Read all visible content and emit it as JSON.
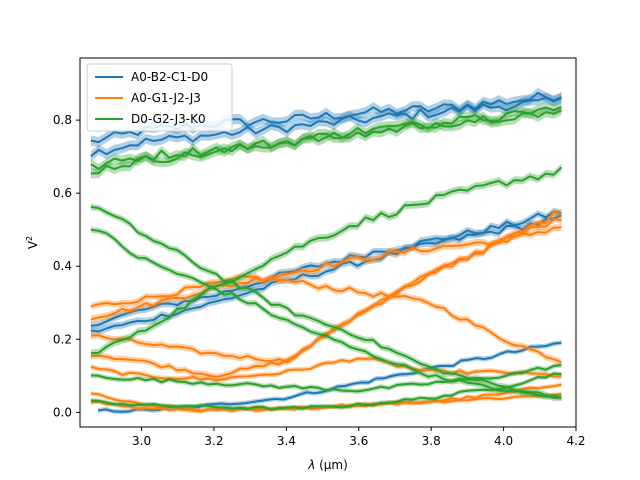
{
  "chart_data": {
    "type": "line",
    "xlabel_prefix": "λ",
    "xlabel_suffix": " (μm)",
    "ylabel_base": "V",
    "ylabel_sup": "2",
    "xlim": [
      2.83,
      4.2
    ],
    "ylim": [
      -0.04,
      0.97
    ],
    "xticks": [
      3.0,
      3.2,
      3.4,
      3.6,
      3.8,
      4.0,
      4.2
    ],
    "xtick_labels": [
      "3.0",
      "3.2",
      "3.4",
      "3.6",
      "3.8",
      "4.0",
      "4.2"
    ],
    "yticks": [
      0.0,
      0.2,
      0.4,
      0.6,
      0.8
    ],
    "ytick_labels": [
      "0.0",
      "0.2",
      "0.4",
      "0.6",
      "0.8"
    ],
    "grid": false,
    "legend_position": "top-left",
    "legend": [
      {
        "label": "A0-B2-C1-D0",
        "color": "#1f77b4"
      },
      {
        "label": "A0-G1-J2-J3",
        "color": "#ff7f0e"
      },
      {
        "label": "D0-G2-J3-K0",
        "color": "#2ca02c"
      }
    ],
    "series": [
      {
        "group": 0,
        "color": "#1f77b4",
        "band": true,
        "x": [
          2.86,
          3.0,
          3.2,
          3.4,
          3.6,
          3.8,
          4.0,
          4.16
        ],
        "y": [
          0.74,
          0.77,
          0.79,
          0.8,
          0.82,
          0.83,
          0.85,
          0.87
        ]
      },
      {
        "group": 0,
        "color": "#1f77b4",
        "band": true,
        "x": [
          2.86,
          3.0,
          3.2,
          3.4,
          3.6,
          3.8,
          4.0,
          4.16
        ],
        "y": [
          0.71,
          0.74,
          0.76,
          0.78,
          0.8,
          0.82,
          0.84,
          0.85
        ]
      },
      {
        "group": 0,
        "color": "#1f77b4",
        "band": true,
        "x": [
          2.86,
          3.0,
          3.2,
          3.4,
          3.6,
          3.8,
          4.0,
          4.16
        ],
        "y": [
          0.24,
          0.28,
          0.32,
          0.38,
          0.43,
          0.47,
          0.51,
          0.55
        ]
      },
      {
        "group": 0,
        "color": "#1f77b4",
        "band": true,
        "x": [
          2.86,
          3.0,
          3.2,
          3.4,
          3.6,
          3.8,
          4.0,
          4.16
        ],
        "y": [
          0.22,
          0.25,
          0.3,
          0.36,
          0.41,
          0.46,
          0.5,
          0.53
        ]
      },
      {
        "group": 0,
        "color": "#1f77b4",
        "band": true,
        "x": [
          2.88,
          3.0,
          3.2,
          3.4,
          3.6,
          3.8,
          4.0,
          4.16
        ],
        "y": [
          0.005,
          0.005,
          0.02,
          0.04,
          0.08,
          0.12,
          0.16,
          0.19
        ]
      },
      {
        "group": 1,
        "color": "#ff7f0e",
        "band": true,
        "x": [
          2.86,
          3.0,
          3.2,
          3.3,
          3.4,
          3.6,
          3.8,
          4.0,
          4.16
        ],
        "y": [
          0.29,
          0.31,
          0.35,
          0.37,
          0.36,
          0.33,
          0.3,
          0.2,
          0.14
        ]
      },
      {
        "group": 1,
        "color": "#ff7f0e",
        "band": true,
        "x": [
          2.86,
          3.0,
          3.2,
          3.3,
          3.4,
          3.6,
          3.8,
          4.0,
          4.16
        ],
        "y": [
          0.26,
          0.29,
          0.34,
          0.36,
          0.38,
          0.42,
          0.45,
          0.47,
          0.51
        ]
      },
      {
        "group": 1,
        "color": "#ff7f0e",
        "band": true,
        "x": [
          2.86,
          3.0,
          3.2,
          3.4,
          3.6,
          3.8,
          4.0,
          4.16
        ],
        "y": [
          0.21,
          0.19,
          0.16,
          0.14,
          0.27,
          0.38,
          0.47,
          0.55
        ]
      },
      {
        "group": 1,
        "color": "#ff7f0e",
        "band": true,
        "x": [
          2.86,
          3.0,
          3.2,
          3.4,
          3.6,
          3.8,
          4.0,
          4.16
        ],
        "y": [
          0.16,
          0.14,
          0.1,
          0.14,
          0.27,
          0.38,
          0.47,
          0.53
        ]
      },
      {
        "group": 1,
        "color": "#ff7f0e",
        "band": true,
        "x": [
          2.86,
          3.0,
          3.2,
          3.4,
          3.6,
          3.8,
          4.0,
          4.16
        ],
        "y": [
          0.12,
          0.1,
          0.09,
          0.11,
          0.15,
          0.11,
          0.11,
          0.1
        ]
      },
      {
        "group": 1,
        "color": "#ff7f0e",
        "band": true,
        "x": [
          2.86,
          3.0,
          3.2,
          3.4,
          3.6,
          3.8,
          4.0,
          4.16
        ],
        "y": [
          0.05,
          0.02,
          0.005,
          0.01,
          0.02,
          0.03,
          0.05,
          0.08
        ]
      },
      {
        "group": 1,
        "color": "#ff7f0e",
        "band": true,
        "x": [
          2.86,
          3.0,
          3.2,
          3.4,
          3.6,
          3.8,
          4.0,
          4.16
        ],
        "y": [
          0.03,
          0.01,
          0.005,
          0.01,
          0.02,
          0.03,
          0.04,
          0.05
        ]
      },
      {
        "group": 2,
        "color": "#2ca02c",
        "band": true,
        "x": [
          2.86,
          3.0,
          3.2,
          3.4,
          3.6,
          3.8,
          4.0,
          4.16
        ],
        "y": [
          0.67,
          0.7,
          0.72,
          0.74,
          0.77,
          0.79,
          0.81,
          0.83
        ]
      },
      {
        "group": 2,
        "color": "#2ca02c",
        "band": true,
        "x": [
          2.86,
          3.0,
          3.2,
          3.4,
          3.6,
          3.8,
          4.0,
          4.16
        ],
        "y": [
          0.66,
          0.69,
          0.71,
          0.74,
          0.76,
          0.79,
          0.81,
          0.82
        ]
      },
      {
        "group": 2,
        "color": "#2ca02c",
        "band": true,
        "x": [
          2.86,
          3.0,
          3.2,
          3.4,
          3.6,
          3.8,
          4.0,
          4.16
        ],
        "y": [
          0.16,
          0.22,
          0.34,
          0.44,
          0.52,
          0.58,
          0.63,
          0.66
        ]
      },
      {
        "group": 2,
        "color": "#2ca02c",
        "band": true,
        "x": [
          2.86,
          3.0,
          3.2,
          3.3,
          3.4,
          3.6,
          3.8,
          4.0,
          4.16
        ],
        "y": [
          0.57,
          0.49,
          0.38,
          0.33,
          0.28,
          0.21,
          0.12,
          0.07,
          0.04
        ]
      },
      {
        "group": 2,
        "color": "#2ca02c",
        "band": true,
        "x": [
          2.86,
          3.0,
          3.2,
          3.3,
          3.4,
          3.6,
          3.8,
          4.0,
          4.16
        ],
        "y": [
          0.51,
          0.42,
          0.34,
          0.3,
          0.25,
          0.17,
          0.1,
          0.06,
          0.04
        ]
      },
      {
        "group": 2,
        "color": "#2ca02c",
        "band": true,
        "x": [
          2.86,
          3.0,
          3.2,
          3.4,
          3.6,
          3.8,
          4.0,
          4.16
        ],
        "y": [
          0.1,
          0.09,
          0.08,
          0.07,
          0.06,
          0.08,
          0.1,
          0.13
        ]
      },
      {
        "group": 2,
        "color": "#2ca02c",
        "band": true,
        "x": [
          2.86,
          3.0,
          3.2,
          3.4,
          3.6,
          3.8,
          4.0,
          4.16
        ],
        "y": [
          0.03,
          0.02,
          0.015,
          0.01,
          0.02,
          0.04,
          0.07,
          0.11
        ]
      }
    ]
  }
}
